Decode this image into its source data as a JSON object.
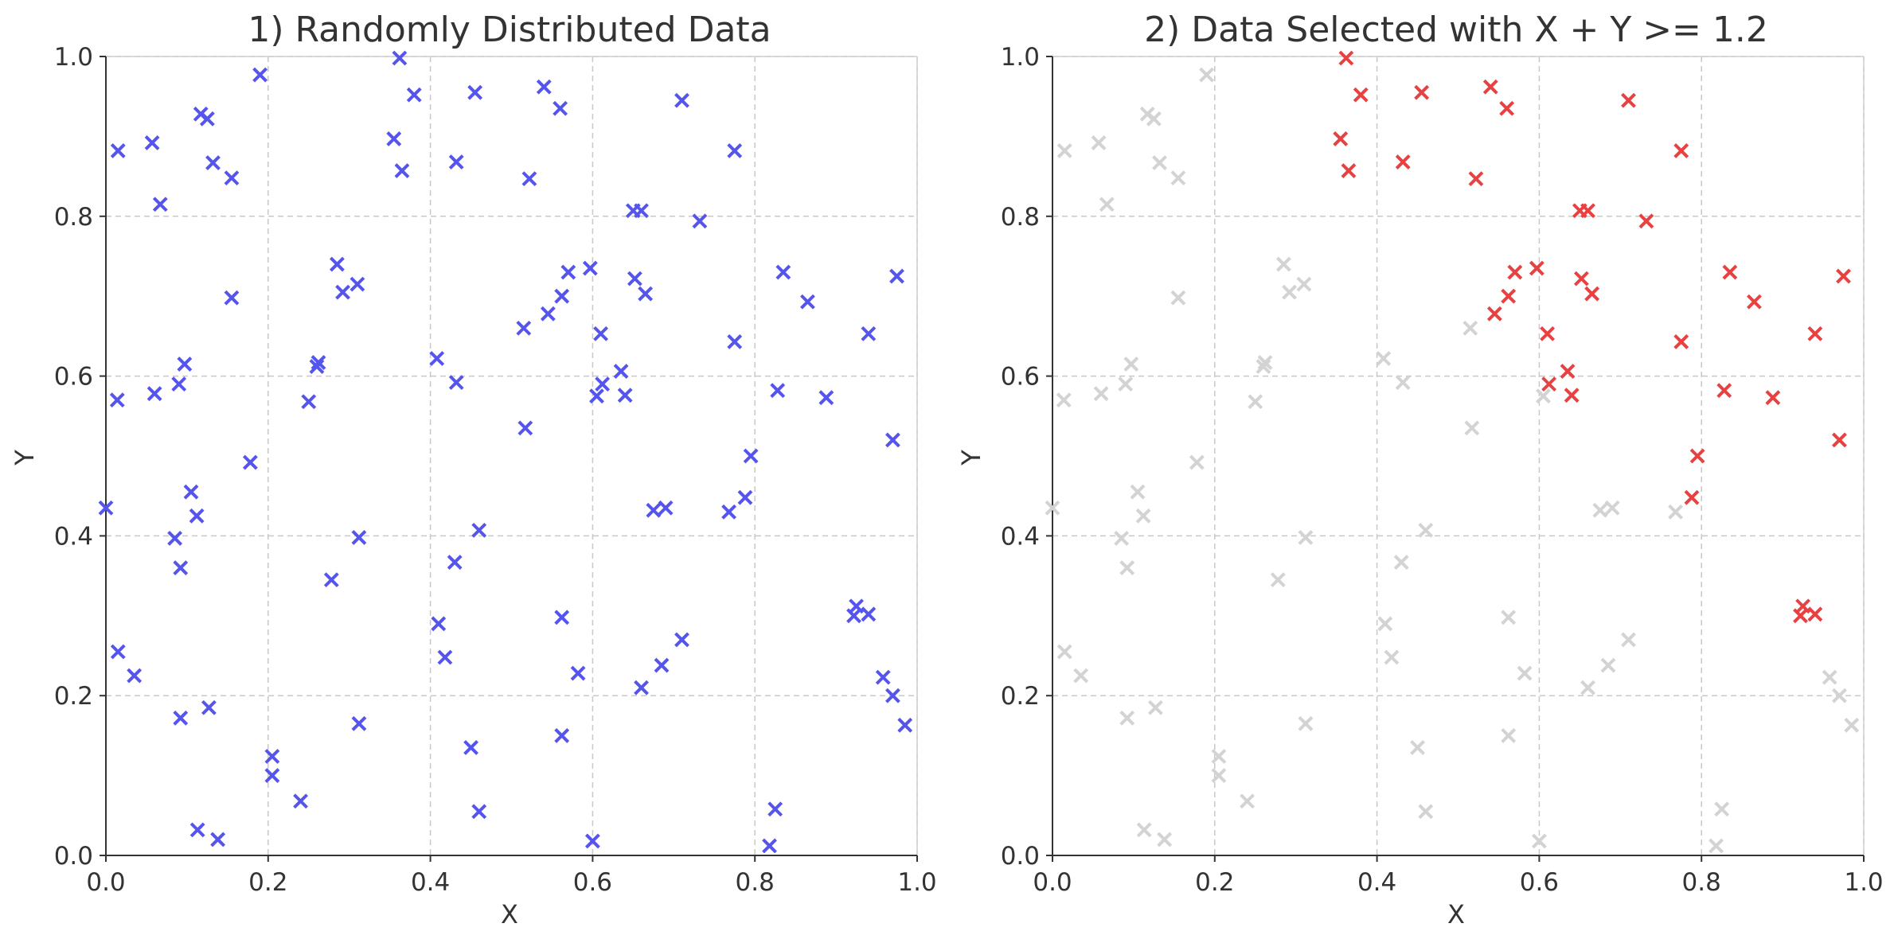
{
  "chart_data": [
    {
      "type": "scatter",
      "title": "1) Randomly Distributed Data",
      "xlabel": "X",
      "ylabel": "Y",
      "xlim": [
        0.0,
        1.0
      ],
      "ylim": [
        0.0,
        1.0
      ],
      "xticks": [
        "0.0",
        "0.2",
        "0.4",
        "0.6",
        "0.8",
        "1.0"
      ],
      "yticks": [
        "0.0",
        "0.2",
        "0.4",
        "0.6",
        "0.8",
        "1.0"
      ],
      "grid": true,
      "marker": "x",
      "series": [
        {
          "color": "#5555ee",
          "points": [
            [
              0.0,
              0.435
            ],
            [
              0.014,
              0.57
            ],
            [
              0.015,
              0.882
            ],
            [
              0.015,
              0.255
            ],
            [
              0.035,
              0.225
            ],
            [
              0.057,
              0.892
            ],
            [
              0.06,
              0.578
            ],
            [
              0.067,
              0.815
            ],
            [
              0.085,
              0.397
            ],
            [
              0.09,
              0.59
            ],
            [
              0.092,
              0.36
            ],
            [
              0.092,
              0.172
            ],
            [
              0.097,
              0.615
            ],
            [
              0.105,
              0.455
            ],
            [
              0.112,
              0.425
            ],
            [
              0.113,
              0.032
            ],
            [
              0.117,
              0.928
            ],
            [
              0.125,
              0.922
            ],
            [
              0.127,
              0.185
            ],
            [
              0.132,
              0.867
            ],
            [
              0.138,
              0.02
            ],
            [
              0.155,
              0.848
            ],
            [
              0.155,
              0.698
            ],
            [
              0.178,
              0.492
            ],
            [
              0.19,
              0.977
            ],
            [
              0.205,
              0.124
            ],
            [
              0.205,
              0.1
            ],
            [
              0.24,
              0.068
            ],
            [
              0.25,
              0.568
            ],
            [
              0.26,
              0.612
            ],
            [
              0.262,
              0.617
            ],
            [
              0.278,
              0.345
            ],
            [
              0.285,
              0.74
            ],
            [
              0.292,
              0.705
            ],
            [
              0.31,
              0.715
            ],
            [
              0.312,
              0.398
            ],
            [
              0.312,
              0.165
            ],
            [
              0.355,
              0.897
            ],
            [
              0.362,
              0.998
            ],
            [
              0.365,
              0.857
            ],
            [
              0.38,
              0.952
            ],
            [
              0.408,
              0.622
            ],
            [
              0.41,
              0.29
            ],
            [
              0.418,
              0.248
            ],
            [
              0.43,
              0.367
            ],
            [
              0.432,
              0.592
            ],
            [
              0.432,
              0.868
            ],
            [
              0.45,
              0.135
            ],
            [
              0.455,
              0.955
            ],
            [
              0.46,
              0.407
            ],
            [
              0.46,
              0.055
            ],
            [
              0.515,
              0.66
            ],
            [
              0.517,
              0.535
            ],
            [
              0.522,
              0.847
            ],
            [
              0.54,
              0.962
            ],
            [
              0.545,
              0.678
            ],
            [
              0.56,
              0.935
            ],
            [
              0.562,
              0.7
            ],
            [
              0.562,
              0.298
            ],
            [
              0.562,
              0.15
            ],
            [
              0.57,
              0.73
            ],
            [
              0.582,
              0.228
            ],
            [
              0.597,
              0.735
            ],
            [
              0.6,
              0.018
            ],
            [
              0.605,
              0.575
            ],
            [
              0.612,
              0.59
            ],
            [
              0.61,
              0.653
            ],
            [
              0.635,
              0.606
            ],
            [
              0.64,
              0.576
            ],
            [
              0.65,
              0.807
            ],
            [
              0.652,
              0.722
            ],
            [
              0.66,
              0.807
            ],
            [
              0.66,
              0.21
            ],
            [
              0.665,
              0.703
            ],
            [
              0.675,
              0.432
            ],
            [
              0.685,
              0.238
            ],
            [
              0.69,
              0.435
            ],
            [
              0.71,
              0.27
            ],
            [
              0.71,
              0.945
            ],
            [
              0.732,
              0.794
            ],
            [
              0.768,
              0.43
            ],
            [
              0.775,
              0.882
            ],
            [
              0.775,
              0.643
            ],
            [
              0.788,
              0.448
            ],
            [
              0.795,
              0.5
            ],
            [
              0.818,
              0.012
            ],
            [
              0.825,
              0.058
            ],
            [
              0.828,
              0.582
            ],
            [
              0.835,
              0.73
            ],
            [
              0.865,
              0.693
            ],
            [
              0.888,
              0.573
            ],
            [
              0.922,
              0.3
            ],
            [
              0.925,
              0.312
            ],
            [
              0.94,
              0.653
            ],
            [
              0.94,
              0.302
            ],
            [
              0.958,
              0.223
            ],
            [
              0.97,
              0.52
            ],
            [
              0.97,
              0.2
            ],
            [
              0.975,
              0.725
            ],
            [
              0.985,
              0.163
            ]
          ]
        }
      ]
    },
    {
      "type": "scatter",
      "title": "2) Data Selected with X + Y >= 1.2",
      "xlabel": "X",
      "ylabel": "Y",
      "xlim": [
        0.0,
        1.0
      ],
      "ylim": [
        0.0,
        1.0
      ],
      "xticks": [
        "0.0",
        "0.2",
        "0.4",
        "0.6",
        "0.8",
        "1.0"
      ],
      "yticks": [
        "0.0",
        "0.2",
        "0.4",
        "0.6",
        "0.8",
        "1.0"
      ],
      "grid": true,
      "marker": "x",
      "threshold": 1.2,
      "selected_color": "#e84141",
      "unselected_color": "#d3d3d3",
      "series": []
    }
  ]
}
